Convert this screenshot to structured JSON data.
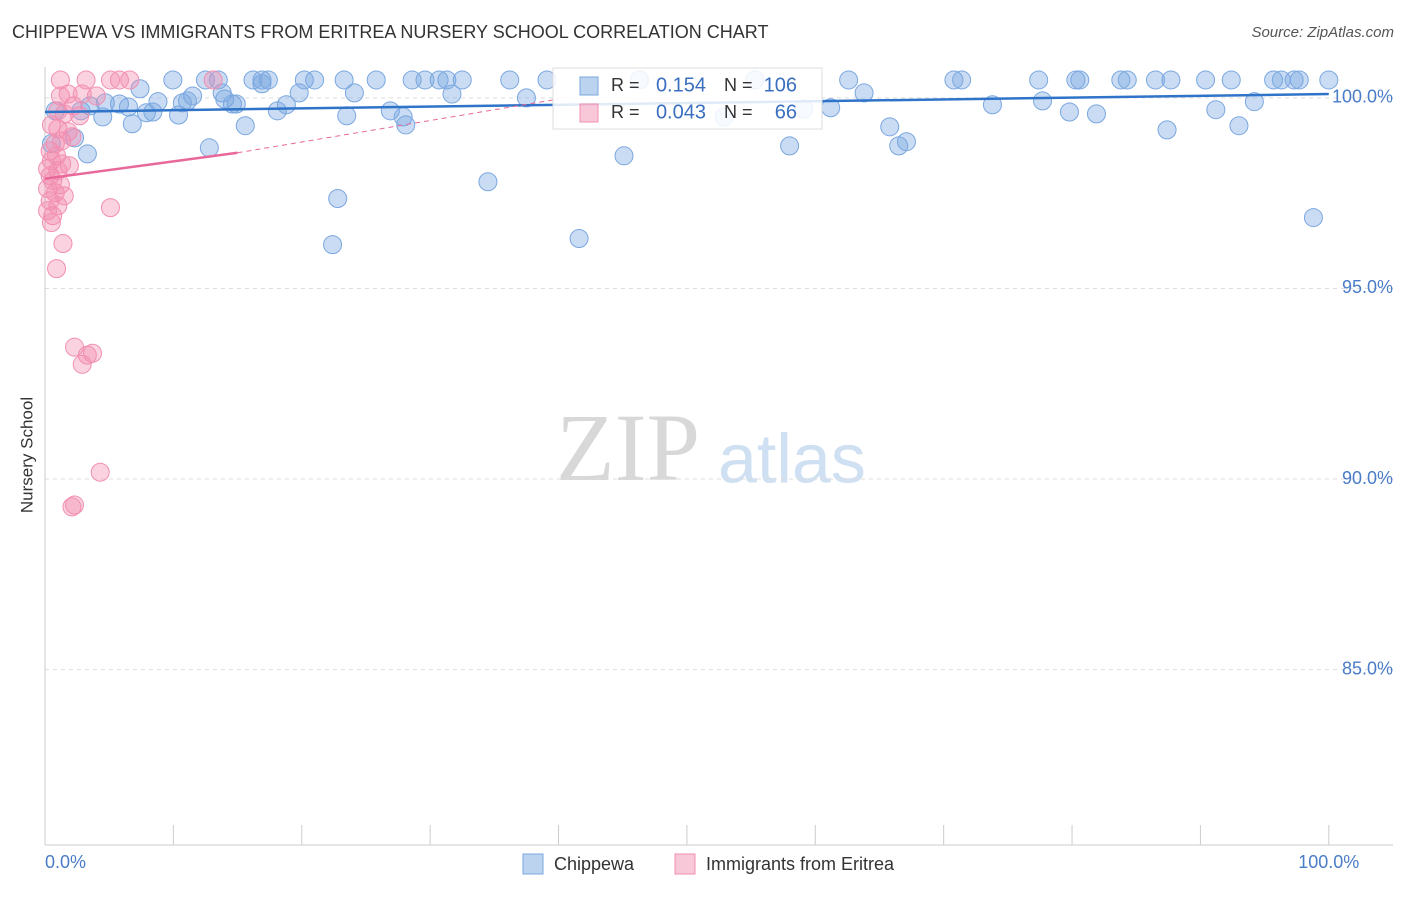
{
  "chart_data": {
    "type": "scatter",
    "title": "CHIPPEWA VS IMMIGRANTS FROM ERITREA NURSERY SCHOOL CORRELATION CHART",
    "source": "Source: ZipAtlas.com",
    "y_label": "Nursery School",
    "watermark": {
      "bold": "ZIP",
      "light": "atlas"
    },
    "xlim": [
      0,
      105
    ],
    "ylim": [
      80.4,
      100.6
    ],
    "xticks": [
      {
        "value": 0,
        "label": "0.0%"
      },
      {
        "value": 100,
        "label": "100.0%"
      }
    ],
    "xminorticks": [
      10,
      20,
      30,
      40,
      50,
      60,
      70,
      80,
      90
    ],
    "yticks": [
      {
        "value": 85,
        "label": "85.0%"
      },
      {
        "value": 90,
        "label": "90.0%"
      },
      {
        "value": 95,
        "label": "95.0%"
      },
      {
        "value": 100,
        "label": "100.0%"
      }
    ],
    "grid": true,
    "stats_labels": {
      "r": "R =",
      "n": "N ="
    },
    "series": [
      {
        "name": "Chippewa",
        "color": "#7aa7e0",
        "line_color": "#2f74c8",
        "stats": {
          "r": 0.154,
          "n": 106
        },
        "trend": {
          "x": [
            0,
            100
          ],
          "values": [
            99.63,
            100.1
          ]
        },
        "x": [
          9.96,
          12.5,
          13.5,
          16.2,
          16.9,
          17.4,
          20.2,
          21.0,
          23.3,
          25.8,
          28.6,
          29.6,
          30.7,
          31.3,
          32.5,
          36.2,
          39.1,
          46.3,
          55.3,
          62.6,
          70.8,
          71.4,
          77.4,
          80.3,
          80.6,
          83.8,
          84.3,
          86.5,
          87.7,
          90.4,
          92.4,
          95.7,
          96.3,
          97.3,
          97.7,
          100,
          7.4,
          11.5,
          13.8,
          14.0,
          24.1,
          31.7,
          16.9,
          63.8,
          77.7,
          73.8,
          94.2,
          91.2,
          79.8,
          81.9,
          61.2,
          59.1,
          37.5,
          3.5,
          4.7,
          5.8,
          6.5,
          8.8,
          10.7,
          11.1,
          14.6,
          14.9,
          18.8,
          19.8,
          18.1,
          26.9,
          27.9,
          28.1,
          23.5,
          7.9,
          8.4,
          10.4,
          4.5,
          6.8,
          15.6,
          2.8,
          2.3,
          0.5,
          3.3,
          12.8,
          45.1,
          34.5,
          22.8,
          22.4,
          41.6,
          98.8,
          65.8,
          67.1,
          66.5,
          58.0,
          87.4,
          93.0,
          52.9,
          0.8
        ],
        "values": [
          100.47,
          100.47,
          100.47,
          100.47,
          100.47,
          100.47,
          100.47,
          100.47,
          100.47,
          100.47,
          100.47,
          100.47,
          100.47,
          100.47,
          100.47,
          100.47,
          100.47,
          100.47,
          100.47,
          100.47,
          100.47,
          100.47,
          100.47,
          100.47,
          100.47,
          100.47,
          100.47,
          100.47,
          100.47,
          100.47,
          100.47,
          100.47,
          100.47,
          100.47,
          100.47,
          100.47,
          100.24,
          100.05,
          100.13,
          99.97,
          100.13,
          100.1,
          100.37,
          100.13,
          99.92,
          99.82,
          99.9,
          99.69,
          99.63,
          99.58,
          99.74,
          99.71,
          100.0,
          99.79,
          99.87,
          99.84,
          99.76,
          99.9,
          99.87,
          99.92,
          99.84,
          99.84,
          99.82,
          100.13,
          99.66,
          99.66,
          99.5,
          99.29,
          99.53,
          99.61,
          99.63,
          99.55,
          99.5,
          99.32,
          99.27,
          99.66,
          98.95,
          98.8,
          98.53,
          98.69,
          98.48,
          97.8,
          97.36,
          96.15,
          96.31,
          96.86,
          99.24,
          98.85,
          98.74,
          98.74,
          99.16,
          99.27,
          99.5,
          99.66
        ]
      },
      {
        "name": "Immigrants from Eritrea",
        "color": "#f28fb1",
        "line_color": "#e8689a",
        "stats": {
          "r": 0.043,
          "n": 66
        },
        "trend": {
          "x": [
            0,
            15
          ],
          "values": [
            97.88,
            98.56
          ]
        },
        "trend_extension": {
          "x": [
            15,
            40
          ],
          "values": [
            98.56,
            99.97
          ]
        },
        "x": [
          1.2,
          3.2,
          5.8,
          6.6,
          13.1,
          5.1,
          1.8,
          2.9,
          4.0,
          1.2,
          2.2,
          1.0,
          1.5,
          2.7,
          0.5,
          1.0,
          1.8,
          2.1,
          0.8,
          1.3,
          0.4,
          0.9,
          0.5,
          1.3,
          1.9,
          0.2,
          1.0,
          0.4,
          0.6,
          1.2,
          0.2,
          0.8,
          1.5,
          0.4,
          1.0,
          0.2,
          0.6,
          0.5,
          5.1,
          1.4,
          0.9,
          2.3,
          3.7,
          3.3,
          2.9,
          4.3,
          2.3,
          2.1
        ],
        "values": [
          100.47,
          100.47,
          100.47,
          100.47,
          100.47,
          100.47,
          100.1,
          100.1,
          100.05,
          100.05,
          99.79,
          99.66,
          99.58,
          99.53,
          99.29,
          99.19,
          99.11,
          98.98,
          98.8,
          98.87,
          98.61,
          98.48,
          98.35,
          98.27,
          98.22,
          98.14,
          98.09,
          97.96,
          97.83,
          97.72,
          97.62,
          97.51,
          97.43,
          97.3,
          97.17,
          97.04,
          96.91,
          96.73,
          97.12,
          96.18,
          95.52,
          93.46,
          93.3,
          93.25,
          93.01,
          90.18,
          89.32,
          89.27
        ]
      }
    ]
  }
}
